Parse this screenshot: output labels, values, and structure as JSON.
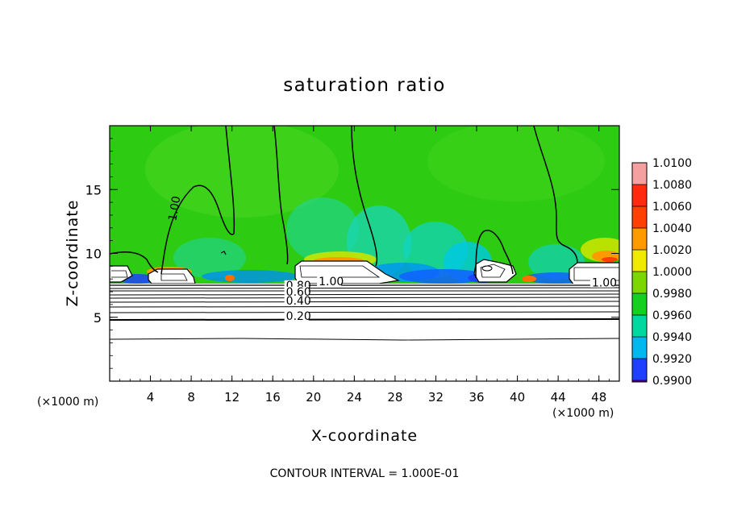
{
  "chart_data": {
    "type": "heatmap",
    "title": "saturation ratio",
    "xlabel": "X-coordinate",
    "ylabel": "Z-coordinate",
    "x_unit_label": "(×1000 m)",
    "x_unit_label_right": "(×1000 m)",
    "xlim": [
      0,
      50
    ],
    "ylim": [
      0,
      20
    ],
    "x_ticks": [
      {
        "value": 4,
        "label": "4"
      },
      {
        "value": 8,
        "label": "8"
      },
      {
        "value": 12,
        "label": "12"
      },
      {
        "value": 16,
        "label": "16"
      },
      {
        "value": 20,
        "label": "20"
      },
      {
        "value": 24,
        "label": "24"
      },
      {
        "value": 28,
        "label": "28"
      },
      {
        "value": 32,
        "label": "32"
      },
      {
        "value": 36,
        "label": "36"
      },
      {
        "value": 40,
        "label": "40"
      },
      {
        "value": 44,
        "label": "44"
      },
      {
        "value": 48,
        "label": "48"
      }
    ],
    "y_ticks": [
      {
        "value": 5,
        "label": "5"
      },
      {
        "value": 10,
        "label": "10"
      },
      {
        "value": 15,
        "label": "15"
      }
    ],
    "colorbar": {
      "levels": [
        {
          "label": "1.0100",
          "color": "#f4a0a0"
        },
        {
          "label": "1.0080",
          "color": "#ff2a10"
        },
        {
          "label": "1.0060",
          "color": "#ff4000"
        },
        {
          "label": "1.0040",
          "color": "#ff9a00"
        },
        {
          "label": "1.0020",
          "color": "#f0ea00"
        },
        {
          "label": "1.0000",
          "color": "#7cd600"
        },
        {
          "label": "0.9980",
          "color": "#16d020"
        },
        {
          "label": "0.9960",
          "color": "#00d8a0"
        },
        {
          "label": "0.9940",
          "color": "#00b8f0"
        },
        {
          "label": "0.9920",
          "color": "#2040ff"
        },
        {
          "label": "0.9900",
          "color": "#1800b0"
        }
      ],
      "bottom_color": "#6000a0"
    },
    "contour_labels": [
      {
        "text": "1.00",
        "x": 6.5,
        "z": 12.5,
        "rotate": -80
      },
      {
        "text": "1.00",
        "x": 20.5,
        "z": 7.5,
        "rotate": 0
      },
      {
        "text": "1.00",
        "x": 47.3,
        "z": 7.4,
        "rotate": 0
      },
      {
        "text": "0.80",
        "x": 17.3,
        "z": 7.2,
        "rotate": 0
      },
      {
        "text": "0.60",
        "x": 17.3,
        "z": 6.7,
        "rotate": 0
      },
      {
        "text": "0.40",
        "x": 17.3,
        "z": 6.0,
        "rotate": 0
      },
      {
        "text": "0.20",
        "x": 17.3,
        "z": 4.8,
        "rotate": 0
      }
    ],
    "contour_interval": "CONTOUR INTERVAL = 1.000E-01"
  }
}
